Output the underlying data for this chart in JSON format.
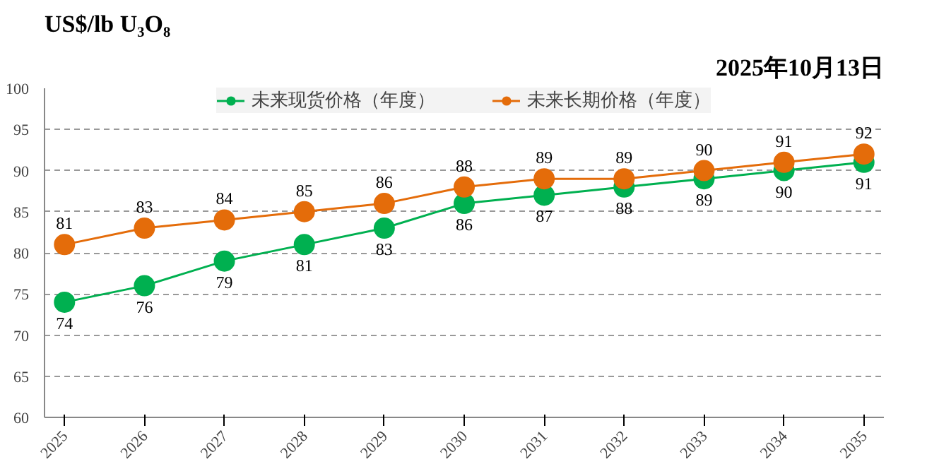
{
  "chart_data": {
    "type": "line",
    "title": "US$/lb U₃O₈",
    "annotations": [
      "2025年10月13日"
    ],
    "categories": [
      "2025",
      "2026",
      "2027",
      "2028",
      "2029",
      "2030",
      "2031",
      "2032",
      "2033",
      "2034",
      "2035"
    ],
    "series": [
      {
        "name": "未来现货价格（年度）",
        "color": "#00b050",
        "values": [
          74,
          76,
          79,
          81,
          83,
          86,
          87,
          88,
          89,
          90,
          91
        ]
      },
      {
        "name": "未来长期价格（年度）",
        "color": "#e46c0a",
        "values": [
          81,
          83,
          84,
          85,
          86,
          88,
          89,
          89,
          90,
          91,
          92
        ]
      }
    ],
    "ylim": [
      60,
      100
    ],
    "yticks": [
      60,
      65,
      70,
      75,
      80,
      85,
      90,
      95,
      100
    ],
    "grid": "y",
    "legend": "top",
    "marker": "circle",
    "line_style": "solid",
    "data_labels": true
  }
}
